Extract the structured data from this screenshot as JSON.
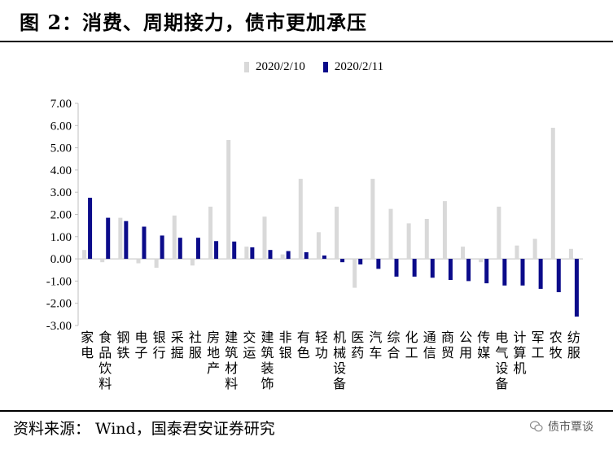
{
  "title": "图 2：消费、周期接力，债市更加承压",
  "source": "资料来源：  Wind，国泰君安证券研究",
  "watermark": "债市覃谈",
  "colors": {
    "series1": "#d9d9d9",
    "series2": "#0b0b8a",
    "axis": "#bfbfbf"
  },
  "chart_data": {
    "type": "bar",
    "ylim": [
      -3.0,
      7.0
    ],
    "yticks": [
      "7.00",
      "6.00",
      "5.00",
      "4.00",
      "3.00",
      "2.00",
      "1.00",
      "0.00",
      "-1.00",
      "-2.00",
      "-3.00"
    ],
    "categories": [
      "家电",
      "食品饮料",
      "钢铁",
      "电子",
      "银行",
      "采掘",
      "社服",
      "房地产",
      "建筑材料",
      "交运",
      "建筑装饰",
      "非银",
      "有色",
      "轻功",
      "机械设备",
      "医药",
      "汽车",
      "综合",
      "化工",
      "通信",
      "商贸",
      "公用",
      "传媒",
      "电气设备",
      "计算机",
      "军工",
      "农牧",
      "纺服"
    ],
    "series": [
      {
        "name": "2020/2/10",
        "values": [
          0.4,
          -0.15,
          1.85,
          -0.2,
          -0.4,
          1.95,
          -0.3,
          2.35,
          5.35,
          0.55,
          1.9,
          0.2,
          3.6,
          1.2,
          2.35,
          -1.3,
          3.6,
          2.25,
          1.6,
          1.8,
          2.6,
          0.55,
          -0.15,
          2.35,
          0.6,
          0.9,
          5.9,
          0.45
        ]
      },
      {
        "name": "2020/2/11",
        "values": [
          2.75,
          1.85,
          1.7,
          1.45,
          1.05,
          0.95,
          0.95,
          0.8,
          0.78,
          0.52,
          0.4,
          0.35,
          0.3,
          0.15,
          -0.15,
          -0.25,
          -0.45,
          -0.8,
          -0.8,
          -0.85,
          -0.95,
          -1.0,
          -1.1,
          -1.2,
          -1.2,
          -1.35,
          -1.5,
          -2.6
        ]
      }
    ]
  }
}
